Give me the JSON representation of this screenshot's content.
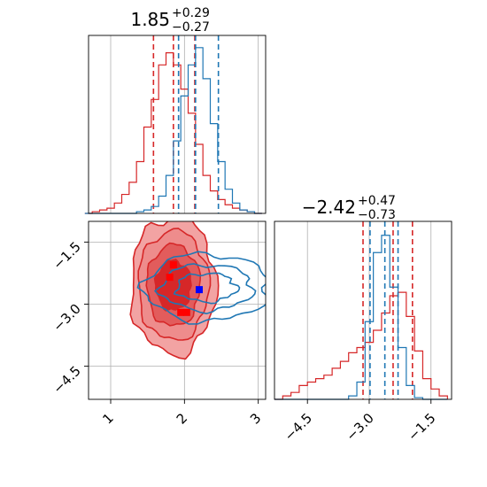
{
  "chart_data": {
    "type": "corner",
    "colors": {
      "red": "#d62728",
      "blue": "#1f77b4",
      "marker_red": "#ff0000",
      "marker_blue": "#0000ff",
      "grid": "#b0b0b0"
    },
    "parameters": [
      {
        "key": "p0",
        "title_value": "1.85",
        "title_plus": "+0.29",
        "title_minus": "−0.27",
        "range": [
          0.7,
          3.1
        ]
      },
      {
        "key": "p1",
        "title_value": "−2.42",
        "title_plus": "+0.47",
        "title_minus": "−0.73",
        "range": [
          -5.3,
          -1.0
        ]
      }
    ],
    "axes": {
      "x_p0_ticks": [
        {
          "value": 1,
          "label": "1"
        },
        {
          "value": 2,
          "label": "2"
        },
        {
          "value": 3,
          "label": "3"
        }
      ],
      "y_p1_ticks": [
        {
          "value": -1.5,
          "label": "−1.5"
        },
        {
          "value": -3.0,
          "label": "−3.0"
        },
        {
          "value": -4.5,
          "label": "−4.5"
        }
      ],
      "x_p1_ticks": [
        {
          "value": -4.5,
          "label": "−4.5"
        },
        {
          "value": -3.0,
          "label": "−3.0"
        },
        {
          "value": -1.5,
          "label": "−1.5"
        }
      ],
      "grid": true
    },
    "series": [
      {
        "color": "red",
        "quantiles_p0": [
          1.58,
          1.85,
          2.14
        ],
        "quantiles_p1": [
          -3.15,
          -2.42,
          -1.95
        ],
        "hist_p0": {
          "x": [
            0.7,
            0.8,
            0.9,
            1.0,
            1.1,
            1.2,
            1.3,
            1.4,
            1.5,
            1.6,
            1.7,
            1.8,
            1.9,
            2.0,
            2.1,
            2.2,
            2.3,
            2.4,
            2.5,
            2.6,
            2.7,
            2.8,
            2.9,
            3.0
          ],
          "y": [
            0.0,
            0.01,
            0.02,
            0.03,
            0.06,
            0.11,
            0.18,
            0.3,
            0.5,
            0.66,
            0.86,
            0.93,
            0.86,
            0.72,
            0.58,
            0.4,
            0.22,
            0.13,
            0.08,
            0.05,
            0.03,
            0.02,
            0.01,
            0.0
          ]
        },
        "hist_p1": {
          "x": [
            -5.2,
            -5.0,
            -4.8,
            -4.6,
            -4.4,
            -4.2,
            -4.0,
            -3.8,
            -3.6,
            -3.4,
            -3.2,
            -3.0,
            -2.8,
            -2.6,
            -2.4,
            -2.2,
            -2.0,
            -1.8,
            -1.6,
            -1.4,
            -1.2
          ],
          "y": [
            0.0,
            0.02,
            0.04,
            0.08,
            0.1,
            0.12,
            0.14,
            0.18,
            0.22,
            0.27,
            0.3,
            0.33,
            0.4,
            0.5,
            0.6,
            0.62,
            0.48,
            0.28,
            0.12,
            0.06,
            0.02
          ]
        },
        "points_2d": [
          [
            1.85,
            -2.05
          ],
          [
            1.8,
            -2.35
          ],
          [
            1.95,
            -3.2
          ],
          [
            2.03,
            -3.2
          ]
        ]
      },
      {
        "color": "blue",
        "quantiles_p0": [
          1.92,
          2.15,
          2.46
        ],
        "quantiles_p1": [
          -2.98,
          -2.62,
          -2.3
        ],
        "hist_p0": {
          "x": [
            0.7,
            0.8,
            0.9,
            1.0,
            1.1,
            1.2,
            1.3,
            1.4,
            1.5,
            1.6,
            1.7,
            1.8,
            1.9,
            2.0,
            2.1,
            2.2,
            2.3,
            2.4,
            2.5,
            2.6,
            2.7,
            2.8,
            2.9,
            3.0
          ],
          "y": [
            0.0,
            0.0,
            0.0,
            0.0,
            0.0,
            0.0,
            0.0,
            0.01,
            0.02,
            0.04,
            0.1,
            0.22,
            0.42,
            0.68,
            0.86,
            0.96,
            0.78,
            0.52,
            0.3,
            0.14,
            0.06,
            0.02,
            0.01,
            0.0
          ]
        },
        "hist_p1": {
          "x": [
            -5.2,
            -5.0,
            -4.8,
            -4.6,
            -4.4,
            -4.2,
            -4.0,
            -3.8,
            -3.6,
            -3.4,
            -3.2,
            -3.0,
            -2.8,
            -2.6,
            -2.4,
            -2.2,
            -2.0,
            -1.8,
            -1.6,
            -1.4,
            -1.2
          ],
          "y": [
            0.0,
            0.0,
            0.0,
            0.0,
            0.0,
            0.0,
            0.0,
            0.0,
            0.0,
            0.02,
            0.1,
            0.45,
            0.85,
            0.95,
            0.65,
            0.3,
            0.08,
            0.01,
            0.0,
            0.0,
            0.0
          ]
        },
        "points_2d": [
          [
            2.2,
            -2.65
          ]
        ]
      }
    ]
  }
}
